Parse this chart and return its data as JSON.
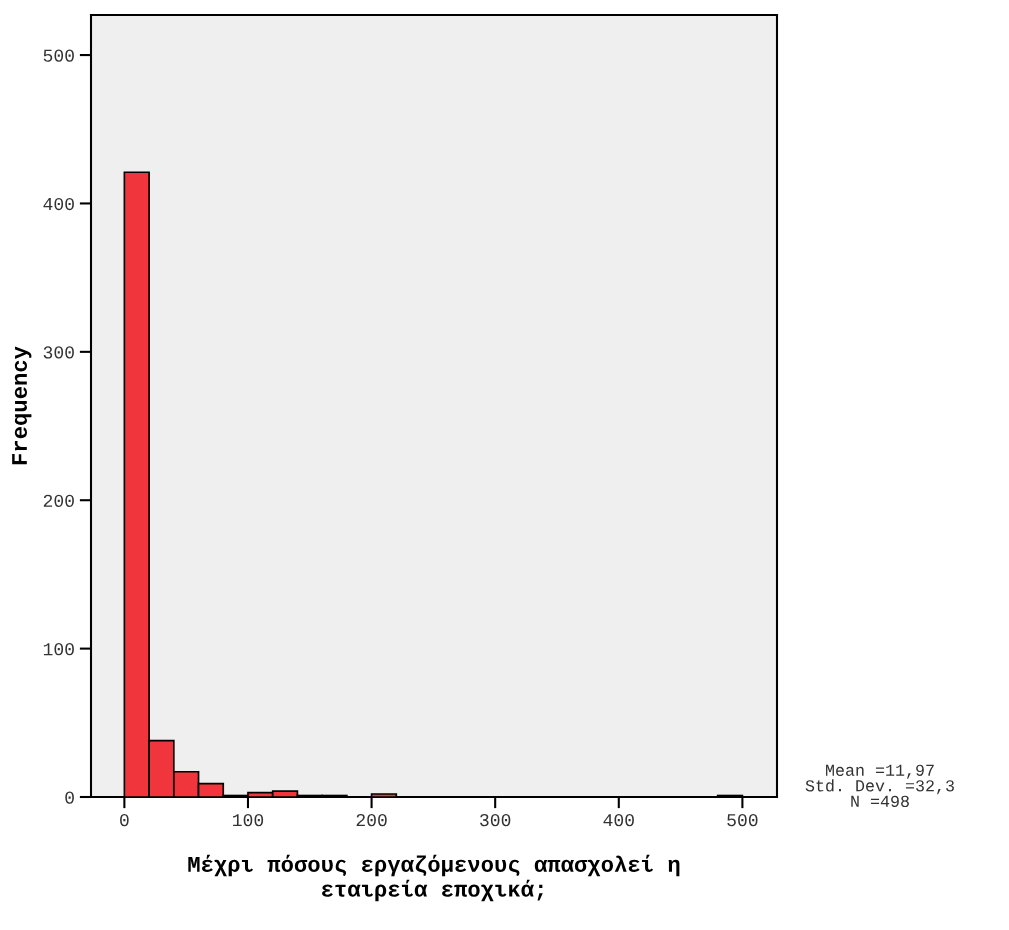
{
  "chart_data": {
    "type": "histogram",
    "xlabel": "Μέχρι πόσους εργαζόμενους απασχολεί η\nεταιρεία εποχικά;",
    "ylabel": "Frequency",
    "bins": [
      0,
      20,
      40,
      60,
      80,
      100,
      120,
      140,
      160,
      180,
      200,
      220,
      240,
      260,
      280,
      300,
      320,
      340,
      360,
      380,
      400,
      420,
      440,
      460,
      480,
      500
    ],
    "values": [
      421,
      38,
      17,
      9,
      1,
      3,
      4,
      1,
      1,
      0,
      2,
      0,
      0,
      0,
      0,
      0,
      0,
      0,
      0,
      0,
      0,
      0,
      0,
      0,
      1
    ],
    "color": "#f0353c",
    "xlim": [
      -27,
      528
    ],
    "ylim": [
      0,
      527
    ],
    "xticks": [
      0,
      100,
      200,
      300,
      400,
      500
    ],
    "yticks": [
      0,
      100,
      200,
      300,
      400,
      500
    ],
    "grid": false,
    "annotations": [
      "Mean =11,97\nStd. Dev. =32,3\nN =498"
    ]
  }
}
